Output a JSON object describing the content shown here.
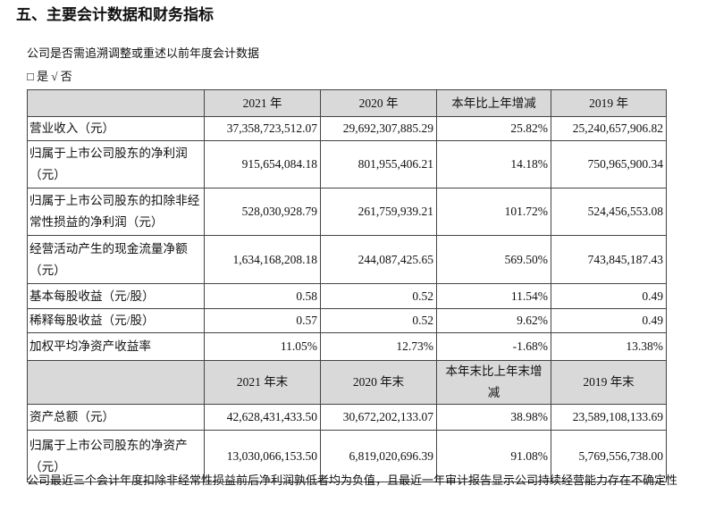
{
  "title": "五、主要会计数据和财务指标",
  "question": "公司是否需追溯调整或重述以前年度会计数据",
  "answer": "□ 是 √ 否",
  "table": {
    "header": [
      "",
      "2021 年",
      "2020 年",
      "本年比上年增减",
      "2019 年"
    ],
    "rows": [
      [
        "营业收入（元）",
        "37,358,723,512.07",
        "29,692,307,885.29",
        "25.82%",
        "25,240,657,906.82"
      ],
      [
        "归属于上市公司股东的净利润（元）",
        "915,654,084.18",
        "801,955,406.21",
        "14.18%",
        "750,965,900.34"
      ],
      [
        "归属于上市公司股东的扣除非经常性损益的净利润（元）",
        "528,030,928.79",
        "261,759,939.21",
        "101.72%",
        "524,456,553.08"
      ],
      [
        "经营活动产生的现金流量净额（元）",
        "1,634,168,208.18",
        "244,087,425.65",
        "569.50%",
        "743,845,187.43"
      ],
      [
        "基本每股收益（元/股）",
        "0.58",
        "0.52",
        "11.54%",
        "0.49"
      ],
      [
        "稀释每股收益（元/股）",
        "0.57",
        "0.52",
        "9.62%",
        "0.49"
      ],
      [
        "加权平均净资产收益率",
        "11.05%",
        "12.73%",
        "-1.68%",
        "13.38%"
      ]
    ],
    "header2": [
      "",
      "2021 年末",
      "2020 年末",
      "本年末比上年末增减",
      "2019 年末"
    ],
    "rows2": [
      [
        "资产总额（元）",
        "42,628,431,433.50",
        "30,672,202,133.07",
        "38.98%",
        "23,589,108,133.69"
      ],
      [
        "归属于上市公司股东的净资产（元）",
        "13,030,066,153.50",
        "6,819,020,696.39",
        "91.08%",
        "5,769,556,738.00"
      ]
    ]
  },
  "note": "公司最近三个会计年度扣除非经常性损益前后净利润孰低者均为负值，且最近一年审计报告显示公司持续经营能力存在不确定性"
}
